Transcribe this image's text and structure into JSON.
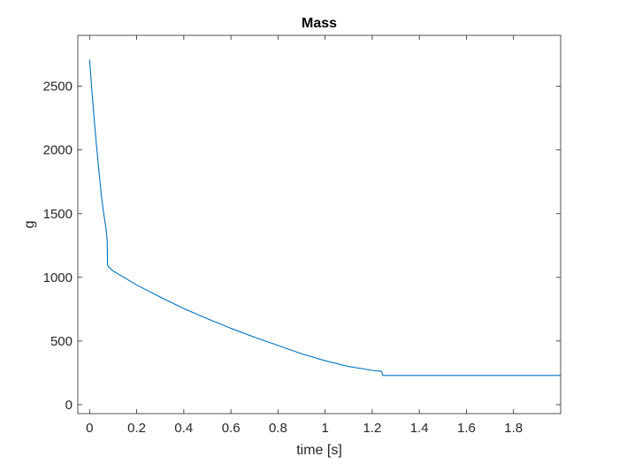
{
  "chart_data": {
    "type": "line",
    "title": "Mass",
    "xlabel": "time [s]",
    "ylabel": "g",
    "xlim": [
      -0.05,
      2.0
    ],
    "ylim": [
      -70,
      2900
    ],
    "xticks": [
      0,
      0.2,
      0.4,
      0.6,
      0.8,
      1,
      1.2,
      1.4,
      1.6,
      1.8
    ],
    "xtick_labels": [
      "0",
      "0.2",
      "0.4",
      "0.6",
      "0.8",
      "1",
      "1.2",
      "1.4",
      "1.6",
      "1.8"
    ],
    "yticks": [
      0,
      500,
      1000,
      1500,
      2000,
      2500
    ],
    "ytick_labels": [
      "0",
      "500",
      "1000",
      "1500",
      "2000",
      "2500"
    ],
    "grid": false,
    "colors": {
      "series": "#0072bd",
      "axes": "#262626"
    },
    "series": [
      {
        "x": [
          0,
          0.01,
          0.02,
          0.03,
          0.04,
          0.05,
          0.06,
          0.07,
          0.075,
          0.076,
          0.08,
          0.1,
          0.2,
          0.3,
          0.4,
          0.5,
          0.6,
          0.7,
          0.8,
          0.9,
          1.0,
          1.1,
          1.2,
          1.24,
          1.245,
          1.3,
          1.4,
          1.6,
          1.8,
          2.0
        ],
        "y": [
          2710,
          2460,
          2230,
          2020,
          1830,
          1640,
          1500,
          1380,
          1280,
          1095,
          1085,
          1050,
          940,
          845,
          755,
          675,
          600,
          530,
          465,
          400,
          345,
          300,
          270,
          262,
          230,
          230,
          230,
          230,
          230,
          230
        ]
      }
    ]
  }
}
